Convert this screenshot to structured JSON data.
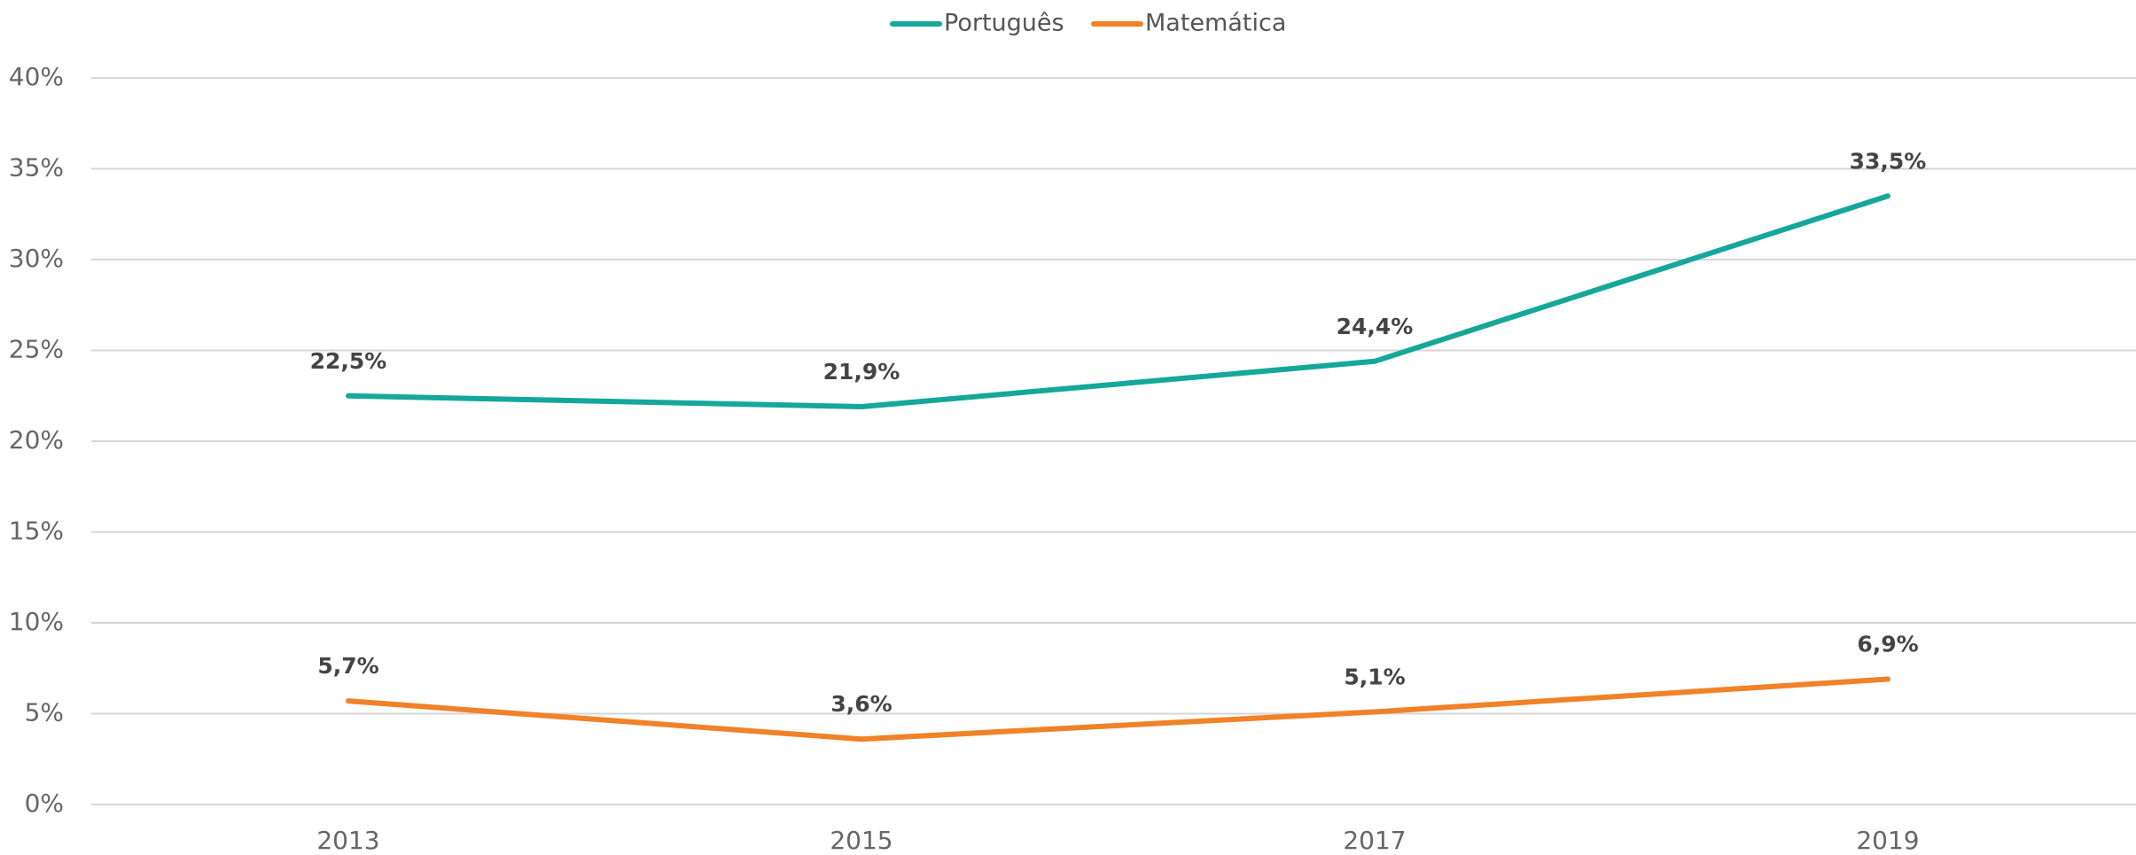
{
  "chart_data": {
    "type": "line",
    "categories": [
      "2013",
      "2015",
      "2017",
      "2019"
    ],
    "series": [
      {
        "name": "Português",
        "color": "#15a89a",
        "values": [
          22.5,
          21.9,
          24.4,
          33.5
        ],
        "value_labels": [
          "22,5%",
          "21,9%",
          "24,4%",
          "33,5%"
        ]
      },
      {
        "name": "Matemática",
        "color": "#f08228",
        "values": [
          5.7,
          3.6,
          5.1,
          6.9
        ],
        "value_labels": [
          "5,7%",
          "3,6%",
          "5,1%",
          "6,9%"
        ]
      }
    ],
    "ylim": [
      0,
      40
    ],
    "yticks": [
      {
        "value": 0,
        "label": "0%"
      },
      {
        "value": 5,
        "label": "5%"
      },
      {
        "value": 10,
        "label": "10%"
      },
      {
        "value": 15,
        "label": "15%"
      },
      {
        "value": 20,
        "label": "20%"
      },
      {
        "value": 25,
        "label": "25%"
      },
      {
        "value": 30,
        "label": "30%"
      },
      {
        "value": 35,
        "label": "35%"
      },
      {
        "value": 40,
        "label": "40%"
      }
    ],
    "grid": true,
    "legend": "top"
  }
}
